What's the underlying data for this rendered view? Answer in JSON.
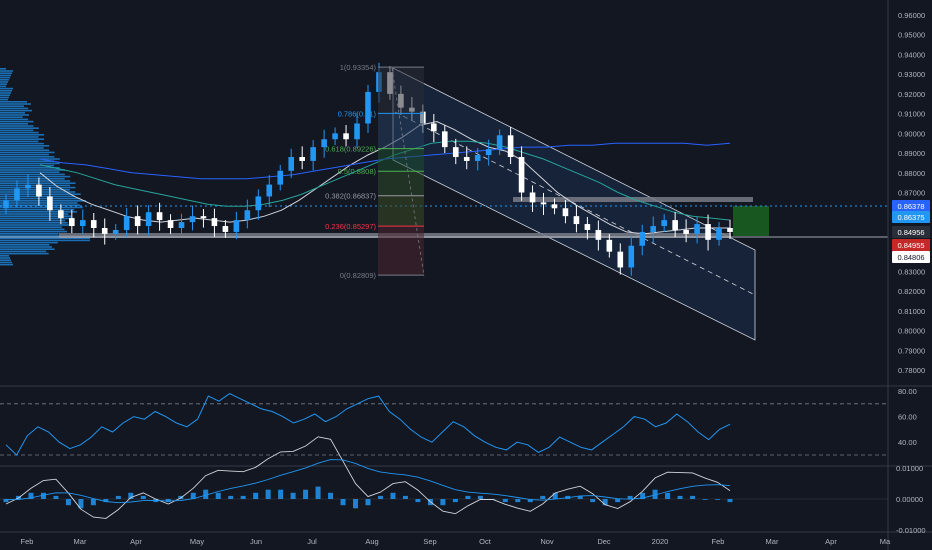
{
  "chart_data": [
    {
      "type": "candlestick",
      "pane": "price",
      "title": "",
      "xlabel": "",
      "ylabel": "",
      "ylim": [
        0.77,
        0.965
      ],
      "y_ticks": [
        "0.96000",
        "0.95000",
        "0.94000",
        "0.93000",
        "0.92000",
        "0.91000",
        "0.90000",
        "0.89000",
        "0.88000",
        "0.87000",
        "0.86000",
        "0.85000",
        "0.84000",
        "0.83000",
        "0.82000",
        "0.81000",
        "0.80000",
        "0.79000",
        "0.78000"
      ],
      "x_ticks": [
        "Feb",
        "Mar",
        "Apr",
        "May",
        "Jun",
        "Jul",
        "Aug",
        "Sep",
        "Oct",
        "Nov",
        "Dec",
        "2020",
        "Feb",
        "Mar",
        "Apr",
        "Ma"
      ],
      "series": [
        {
          "name": "",
          "values": [
            0.866,
            0.872,
            0.874,
            0.868,
            0.861,
            0.857,
            0.853,
            0.856,
            0.852,
            0.849,
            0.851,
            0.858,
            0.853,
            0.86,
            0.856,
            0.852,
            0.855,
            0.858,
            0.857,
            0.853,
            0.85,
            0.856,
            0.861,
            0.868,
            0.874,
            0.881,
            0.888,
            0.886,
            0.893,
            0.897,
            0.9,
            0.897,
            0.905,
            0.921,
            0.931,
            0.92,
            0.913,
            0.911,
            0.905,
            0.901,
            0.893,
            0.888,
            0.886,
            0.889,
            0.892,
            0.899,
            0.888,
            0.87,
            0.865,
            0.864,
            0.862,
            0.858,
            0.854,
            0.851,
            0.846,
            0.84,
            0.832,
            0.843,
            0.85,
            0.853,
            0.856,
            0.851,
            0.849,
            0.854,
            0.846,
            0.852,
            0.85
          ]
        },
        {
          "name": "",
          "values": [
            0.88,
            0.873,
            0.868,
            0.864,
            0.861,
            0.858,
            0.856,
            0.855,
            0.856,
            0.857,
            0.856,
            0.855,
            0.856,
            0.858,
            0.861,
            0.866,
            0.872,
            0.878,
            0.884,
            0.889,
            0.893,
            0.898,
            0.904,
            0.906,
            0.902,
            0.897,
            0.893,
            0.891,
            0.886,
            0.878,
            0.87,
            0.864,
            0.859,
            0.854,
            0.85,
            0.849,
            0.85,
            0.851,
            0.852,
            0.852,
            0.852
          ]
        },
        {
          "name": "",
          "values": [
            0.884,
            0.882,
            0.88,
            0.877,
            0.874,
            0.872,
            0.87,
            0.868,
            0.866,
            0.864,
            0.863,
            0.863,
            0.864,
            0.866,
            0.869,
            0.873,
            0.877,
            0.881,
            0.885,
            0.889,
            0.892,
            0.895,
            0.896,
            0.896,
            0.895,
            0.893,
            0.89,
            0.887,
            0.883,
            0.879,
            0.875,
            0.87,
            0.866,
            0.863,
            0.86,
            0.858,
            0.857,
            0.856
          ]
        },
        {
          "name": "",
          "values": [
            0.887,
            0.885,
            0.884,
            0.882,
            0.88,
            0.879,
            0.878,
            0.877,
            0.877,
            0.877,
            0.878,
            0.879,
            0.881,
            0.883,
            0.885,
            0.887,
            0.888,
            0.889,
            0.89,
            0.891,
            0.892,
            0.893,
            0.893,
            0.894,
            0.894,
            0.895,
            0.895,
            0.895,
            0.895,
            0.894,
            0.895
          ]
        }
      ],
      "fibonacci": [
        {
          "label": "1(0.93354)",
          "value": 0.93354
        },
        {
          "label": "0.786(0.91)",
          "value": 0.9101
        },
        {
          "label": "0.618(0.89226)",
          "value": 0.89226
        },
        {
          "label": "0.5(0.8808)",
          "value": 0.8808
        },
        {
          "label": "0.382(0.86837)",
          "value": 0.86837
        },
        {
          "label": "0.236(0.85297)",
          "value": 0.85297
        },
        {
          "label": "0(0.82809)",
          "value": 0.82809
        }
      ],
      "price_labels": [
        {
          "text": "0.86378",
          "value": 0.86378,
          "color": "#2962ff"
        },
        {
          "text": "0.86375",
          "value": 0.86375,
          "color": "#2196f3"
        },
        {
          "text": "0.84956",
          "value": 0.84956,
          "color": "#2a2e39"
        },
        {
          "text": "0.84955",
          "value": 0.84955,
          "color": "#c62828"
        },
        {
          "text": "0.84806",
          "value": 0.84806,
          "color": "#ffffff"
        }
      ],
      "colors": {
        "bull": "#2196f3",
        "bear": "#ffffff",
        "ma1": "#d1d4dc",
        "ma2": "#26a69a",
        "ma3": "#2962ff",
        "volume_profile": "#2196f3",
        "channel": "#1e3a64",
        "target_box": "#1b5e20"
      }
    },
    {
      "type": "line",
      "pane": "oscillator-1",
      "title": "",
      "ylim": [
        25,
        85
      ],
      "y_ticks": [
        "80.00",
        "60.00",
        "40.00"
      ],
      "reference_lines": [
        70,
        30
      ],
      "series": [
        {
          "name": "",
          "color": "#2196f3",
          "values": [
            38,
            30,
            45,
            52,
            48,
            40,
            35,
            38,
            44,
            52,
            48,
            55,
            60,
            58,
            64,
            60,
            55,
            52,
            58,
            76,
            72,
            78,
            74,
            70,
            66,
            64,
            60,
            55,
            58,
            62,
            56,
            60,
            66,
            70,
            74,
            76,
            64,
            58,
            50,
            44,
            40,
            48,
            56,
            52,
            45,
            40,
            36,
            34,
            40,
            38,
            32,
            36,
            44,
            40,
            36,
            34,
            40,
            46,
            52,
            60,
            58,
            52,
            55,
            62,
            56,
            48,
            42,
            50,
            54
          ]
        }
      ]
    },
    {
      "type": "bar",
      "pane": "oscillator-2",
      "title": "",
      "ylim": [
        -0.011,
        0.011
      ],
      "y_ticks": [
        "0.01000",
        "0.00000",
        "-0.01000"
      ],
      "series": [
        {
          "name": "",
          "color": "#2196f3",
          "values": [
            -0.001,
            0.001,
            0.002,
            0.002,
            0.001,
            -0.002,
            -0.003,
            -0.002,
            -0.001,
            0.001,
            0.002,
            0.001,
            -0.001,
            -0.001,
            0.001,
            0.002,
            0.003,
            0.002,
            0.001,
            0.001,
            0.002,
            0.003,
            0.003,
            0.002,
            0.003,
            0.004,
            0.002,
            -0.002,
            -0.003,
            -0.002,
            0.001,
            0.002,
            0.001,
            -0.001,
            -0.002,
            -0.002,
            -0.001,
            0.001,
            0.001,
            0.0,
            -0.001,
            -0.001,
            -0.001,
            0.001,
            0.002,
            0.001,
            0.001,
            -0.001,
            -0.002,
            -0.001,
            0.001,
            0.002,
            0.003,
            0.002,
            0.001,
            0.001,
            0.0,
            0.0,
            -0.001
          ]
        }
      ]
    }
  ]
}
